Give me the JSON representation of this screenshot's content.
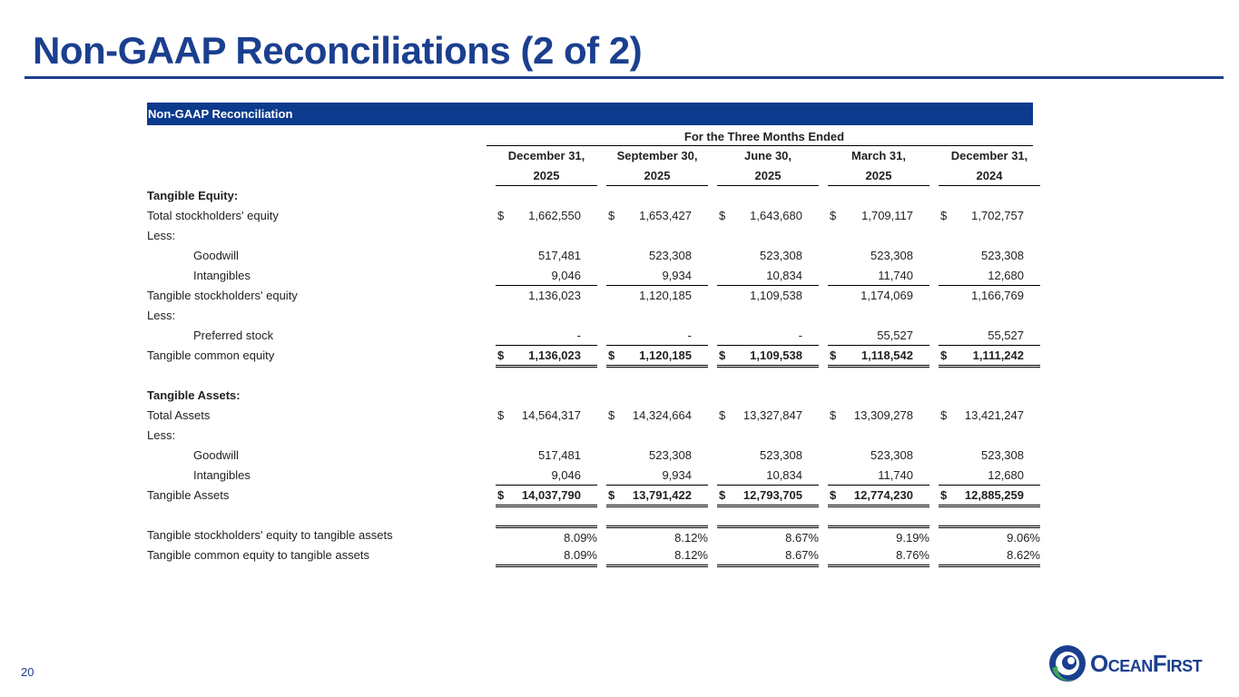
{
  "title": "Non-GAAP Reconciliations (2 of 2)",
  "table": {
    "caption": "Non-GAAP Reconciliation",
    "period_header": "For the Three Months Ended",
    "columns": [
      [
        "December 31,",
        "2025"
      ],
      [
        "September 30,",
        "2025"
      ],
      [
        "June 30,",
        "2025"
      ],
      [
        "March 31,",
        "2025"
      ],
      [
        "December 31,",
        "2024"
      ]
    ],
    "rows": [
      {
        "label": "Tangible Equity:"
      },
      {
        "label": "Total stockholders' equity",
        "currency": "$",
        "values": [
          "1,662,550",
          "1,653,427",
          "1,643,680",
          "1,709,117",
          "1,702,757"
        ]
      },
      {
        "label": "Less:"
      },
      {
        "label": "Goodwill",
        "values": [
          "517,481",
          "523,308",
          "523,308",
          "523,308",
          "523,308"
        ]
      },
      {
        "label": "Intangibles",
        "values": [
          "9,046",
          "9,934",
          "10,834",
          "11,740",
          "12,680"
        ]
      },
      {
        "label": "Tangible stockholders' equity",
        "values": [
          "1,136,023",
          "1,120,185",
          "1,109,538",
          "1,174,069",
          "1,166,769"
        ]
      },
      {
        "label": "Less:"
      },
      {
        "label": "Preferred stock",
        "values": [
          "-",
          "-",
          "-",
          "55,527",
          "55,527"
        ]
      },
      {
        "label": "Tangible common equity",
        "currency": "$",
        "values": [
          "1,136,023",
          "1,120,185",
          "1,109,538",
          "1,118,542",
          "1,111,242"
        ]
      },
      {
        "label": "Tangible Assets:"
      },
      {
        "label": "Total Assets",
        "currency": "$",
        "values": [
          "14,564,317",
          "14,324,664",
          "13,327,847",
          "13,309,278",
          "13,421,247"
        ]
      },
      {
        "label": "Less:"
      },
      {
        "label": "Goodwill",
        "values": [
          "517,481",
          "523,308",
          "523,308",
          "523,308",
          "523,308"
        ]
      },
      {
        "label": "Intangibles",
        "values": [
          "9,046",
          "9,934",
          "10,834",
          "11,740",
          "12,680"
        ]
      },
      {
        "label": "Tangible Assets",
        "currency": "$",
        "values": [
          "14,037,790",
          "13,791,422",
          "12,793,705",
          "12,774,230",
          "12,885,259"
        ]
      },
      {
        "label": "Tangible stockholders' equity to tangible assets",
        "values": [
          "8.09%",
          "8.12%",
          "8.67%",
          "9.19%",
          "9.06%"
        ]
      },
      {
        "label": "Tangible common equity to tangible assets",
        "values": [
          "8.09%",
          "8.12%",
          "8.67%",
          "8.76%",
          "8.62%"
        ]
      }
    ]
  },
  "page_number": "20",
  "logo": "OceanFirst"
}
